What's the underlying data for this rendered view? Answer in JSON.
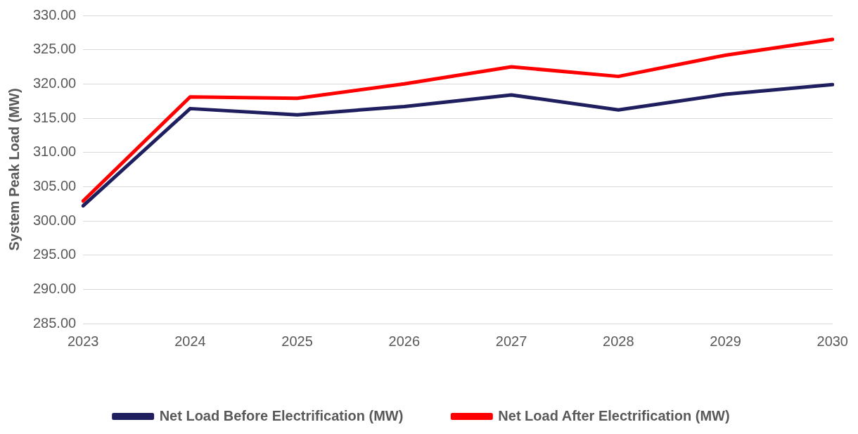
{
  "chart_data": {
    "type": "line",
    "ylabel": "System Peak Load (MW)",
    "categories": [
      "2023",
      "2024",
      "2025",
      "2026",
      "2027",
      "2028",
      "2029",
      "2030"
    ],
    "series": [
      {
        "name": "Net Load Before Electrification (MW)",
        "color": "#1f1f5f",
        "values": [
          302.2,
          316.4,
          315.5,
          316.7,
          318.4,
          316.2,
          318.5,
          319.9
        ]
      },
      {
        "name": "Net Load After Electrification (MW)",
        "color": "#ff0000",
        "values": [
          302.9,
          318.1,
          317.9,
          320.0,
          322.5,
          321.1,
          324.2,
          326.5
        ]
      }
    ],
    "ylim": [
      285,
      330
    ],
    "yticks": [
      {
        "value": 285,
        "label": "285.00"
      },
      {
        "value": 290,
        "label": "290.00"
      },
      {
        "value": 295,
        "label": "295.00"
      },
      {
        "value": 300,
        "label": "300.00"
      },
      {
        "value": 305,
        "label": "305.00"
      },
      {
        "value": 310,
        "label": "310.00"
      },
      {
        "value": 315,
        "label": "315.00"
      },
      {
        "value": 320,
        "label": "320.00"
      },
      {
        "value": 325,
        "label": "325.00"
      },
      {
        "value": 330,
        "label": "330.00"
      }
    ],
    "grid": "y",
    "legend": "bottom",
    "marker": "none",
    "line_style": "solid"
  }
}
